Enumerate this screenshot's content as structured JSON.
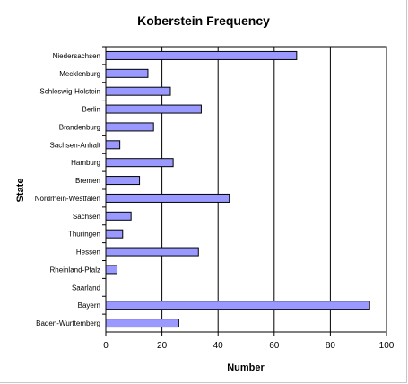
{
  "chart_data": {
    "type": "bar",
    "orientation": "horizontal",
    "title": "Koberstein Frequency",
    "xlabel": "Number",
    "ylabel": "State",
    "xlim": [
      0,
      100
    ],
    "xticks": [
      0,
      20,
      40,
      60,
      80,
      100
    ],
    "grid": "vertical major gridlines",
    "legend": "none",
    "bar_color": "#9999ff",
    "categories": [
      "Niedersachsen",
      "Mecklenburg",
      "Schleswig-Holstein",
      "Berlin",
      "Brandenburg",
      "Sachsen-Anhalt",
      "Hamburg",
      "Bremen",
      "Nordrhein-Westfalen",
      "Sachsen",
      "Thuringen",
      "Hessen",
      "Rheinland-Pfalz",
      "Saarland",
      "Bayern",
      "Baden-Wurttemberg"
    ],
    "values": [
      68,
      15,
      23,
      34,
      17,
      5,
      24,
      12,
      44,
      9,
      6,
      33,
      4,
      0,
      94,
      26
    ]
  }
}
